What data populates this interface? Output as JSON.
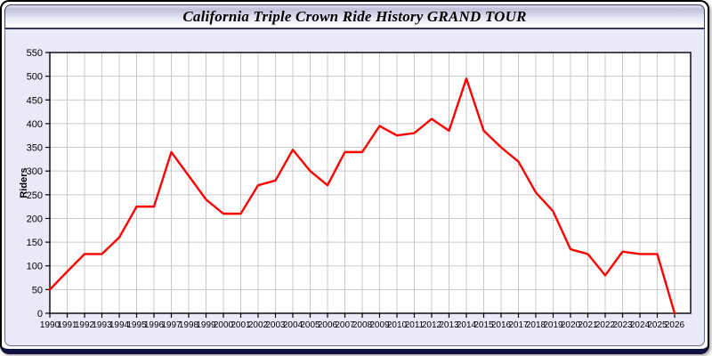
{
  "window": {
    "title": "California Triple Crown Ride History GRAND TOUR"
  },
  "colors": {
    "line": "#ff0000",
    "plot_bg": "#ffffff",
    "panel_bg": "#e9e9f7",
    "grid": "#c9c9c9",
    "frame": "#000000",
    "tick_text": "#000000",
    "title_text": "#000000",
    "bottom_bar": "#10103f"
  },
  "chart_data": {
    "type": "line",
    "title": "California Triple Crown Ride History GRAND TOUR",
    "xlabel": "",
    "ylabel": "Riders",
    "legend": "none",
    "grid": true,
    "ylim": [
      0,
      550
    ],
    "y_ticks": [
      0,
      50,
      100,
      150,
      200,
      250,
      300,
      350,
      400,
      450,
      500,
      550
    ],
    "categories": [
      "1990",
      "1991",
      "1992",
      "1993",
      "1994",
      "1995",
      "1996",
      "1997",
      "1998",
      "1999",
      "2000",
      "2001",
      "2002",
      "2003",
      "2004",
      "2005",
      "2006",
      "2007",
      "2008",
      "2009",
      "2010",
      "2011",
      "2012",
      "2013",
      "2014",
      "2015",
      "2016",
      "2017",
      "2018",
      "2019",
      "2020",
      "2021",
      "2022",
      "2023",
      "2024",
      "2025",
      "2026"
    ],
    "series": [
      {
        "name": "Riders",
        "values": [
          50,
          88,
          125,
          125,
          160,
          225,
          225,
          340,
          290,
          240,
          210,
          210,
          270,
          280,
          345,
          300,
          270,
          340,
          340,
          395,
          375,
          380,
          410,
          385,
          495,
          385,
          350,
          320,
          255,
          215,
          135,
          125,
          80,
          130,
          125,
          125,
          0
        ]
      }
    ],
    "line_color": "#ff0000"
  }
}
